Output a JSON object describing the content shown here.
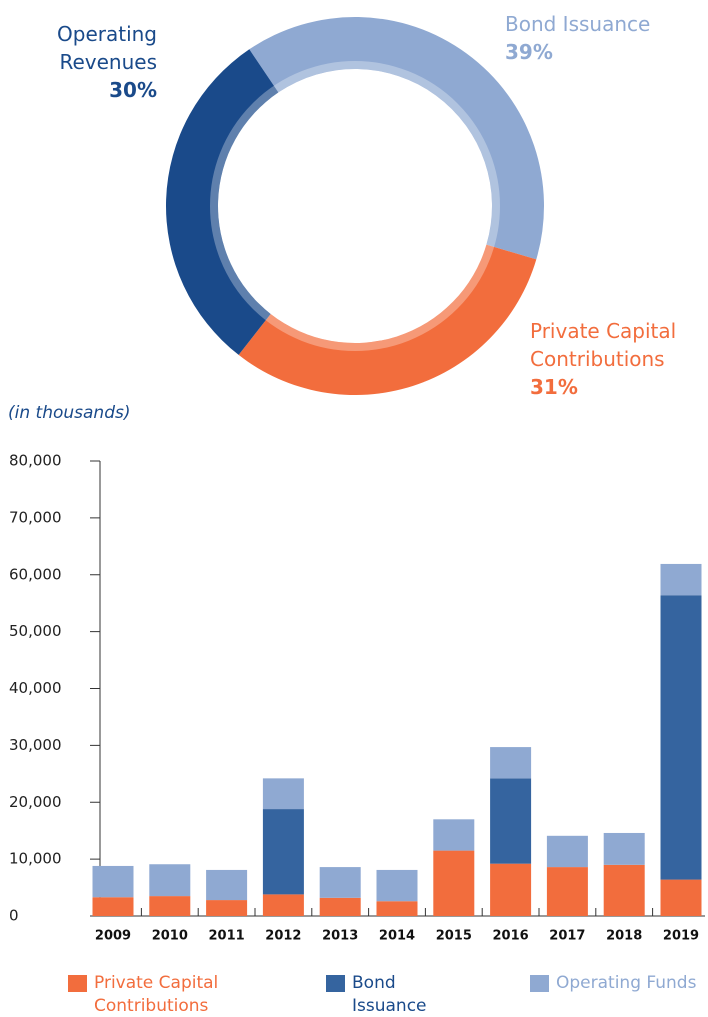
{
  "chart_data": [
    {
      "type": "donut",
      "categories": [
        "Bond Issuance",
        "Private Capital Contributions",
        "Operating Revenues"
      ],
      "values": [
        39,
        31,
        30
      ],
      "value_labels": [
        "39%",
        "31%",
        "30%"
      ],
      "colors": [
        "#8fa9d2",
        "#f26d3d",
        "#1a4a8a"
      ]
    },
    {
      "type": "stacked_bar",
      "subtitle": "(in thousands)",
      "categories": [
        "2009",
        "2010",
        "2011",
        "2012",
        "2013",
        "2014",
        "2015",
        "2016",
        "2017",
        "2018",
        "2019"
      ],
      "series": [
        {
          "name": "Private Capital Contributions",
          "color": "#f26d3d",
          "values": [
            3300,
            3500,
            2800,
            3800,
            3200,
            2600,
            11500,
            9200,
            8600,
            9000,
            6400
          ]
        },
        {
          "name": "Bond Issuance",
          "color": "#35649f",
          "values": [
            0,
            0,
            0,
            15000,
            0,
            0,
            0,
            15000,
            0,
            0,
            50000
          ]
        },
        {
          "name": "Operating Funds",
          "color": "#8fa9d2",
          "values": [
            5500,
            5600,
            5300,
            5400,
            5400,
            5500,
            5500,
            5500,
            5500,
            5600,
            5500
          ]
        }
      ],
      "ylim": [
        0,
        80000
      ],
      "yticks": [
        0,
        {
          "value": 10000,
          "label": "10,000"
        },
        {
          "value": 20000,
          "label": "20,000"
        },
        {
          "value": 30000,
          "label": "30,000"
        },
        {
          "value": 40000,
          "label": "40,000"
        },
        {
          "value": 50000,
          "label": "50,000"
        },
        {
          "value": 60000,
          "label": "60,000"
        },
        {
          "value": 70000,
          "label": "70,000"
        },
        {
          "value": 80000,
          "label": "80,000"
        }
      ],
      "legend": "bottom"
    }
  ]
}
